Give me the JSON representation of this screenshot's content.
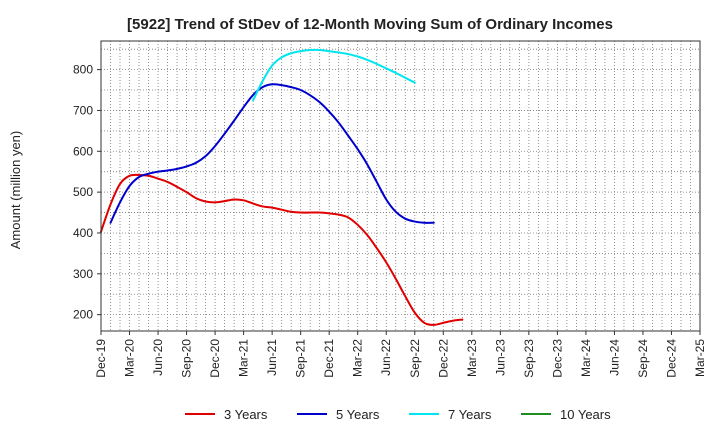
{
  "chart_data": {
    "type": "line",
    "title": "[5922]  Trend of StDev of 12-Month Moving Sum of Ordinary Incomes",
    "xlabel": "",
    "ylabel": "Amount (million yen)",
    "ylim": [
      160,
      870
    ],
    "yticks": [
      200,
      300,
      400,
      500,
      600,
      700,
      800
    ],
    "xticks": [
      "Dec-19",
      "Mar-20",
      "Jun-20",
      "Sep-20",
      "Dec-20",
      "Mar-21",
      "Jun-21",
      "Sep-21",
      "Dec-21",
      "Mar-22",
      "Jun-22",
      "Sep-22",
      "Dec-22",
      "Mar-23",
      "Jun-23",
      "Sep-23",
      "Dec-23",
      "Mar-24",
      "Jun-24",
      "Sep-24",
      "Dec-24",
      "Mar-25"
    ],
    "grid": true,
    "legend_position": "bottom",
    "series": [
      {
        "name": "3 Years",
        "color": "#e00000",
        "points": [
          [
            0,
            403
          ],
          [
            1,
            470
          ],
          [
            2,
            520
          ],
          [
            3,
            540
          ],
          [
            4,
            542
          ],
          [
            5,
            540
          ],
          [
            6,
            533
          ],
          [
            7,
            525
          ],
          [
            8,
            513
          ],
          [
            9,
            500
          ],
          [
            10,
            485
          ],
          [
            11,
            477
          ],
          [
            12,
            475
          ],
          [
            13,
            478
          ],
          [
            14,
            482
          ],
          [
            15,
            480
          ],
          [
            16,
            472
          ],
          [
            17,
            465
          ],
          [
            18,
            462
          ],
          [
            19,
            457
          ],
          [
            20,
            452
          ],
          [
            21,
            450
          ],
          [
            22,
            450
          ],
          [
            23,
            450
          ],
          [
            24,
            448
          ],
          [
            25,
            445
          ],
          [
            26,
            438
          ],
          [
            27,
            420
          ],
          [
            28,
            395
          ],
          [
            29,
            363
          ],
          [
            30,
            328
          ],
          [
            31,
            288
          ],
          [
            32,
            245
          ],
          [
            33,
            205
          ],
          [
            34,
            180
          ],
          [
            35,
            175
          ],
          [
            36,
            180
          ],
          [
            37,
            185
          ],
          [
            38,
            188
          ]
        ]
      },
      {
        "name": "5 Years",
        "color": "#0000cc",
        "points": [
          [
            1,
            425
          ],
          [
            2,
            475
          ],
          [
            3,
            515
          ],
          [
            4,
            537
          ],
          [
            5,
            545
          ],
          [
            6,
            550
          ],
          [
            7,
            553
          ],
          [
            8,
            557
          ],
          [
            9,
            563
          ],
          [
            10,
            572
          ],
          [
            11,
            588
          ],
          [
            12,
            613
          ],
          [
            13,
            643
          ],
          [
            14,
            675
          ],
          [
            15,
            708
          ],
          [
            16,
            738
          ],
          [
            17,
            757
          ],
          [
            18,
            764
          ],
          [
            19,
            762
          ],
          [
            20,
            757
          ],
          [
            21,
            750
          ],
          [
            22,
            737
          ],
          [
            23,
            720
          ],
          [
            24,
            697
          ],
          [
            25,
            670
          ],
          [
            26,
            638
          ],
          [
            27,
            605
          ],
          [
            28,
            568
          ],
          [
            29,
            525
          ],
          [
            30,
            482
          ],
          [
            31,
            452
          ],
          [
            32,
            435
          ],
          [
            33,
            428
          ],
          [
            34,
            425
          ],
          [
            35,
            425
          ]
        ]
      },
      {
        "name": "7 Years",
        "color": "#00e5ee",
        "points": [
          [
            16,
            725
          ],
          [
            17,
            772
          ],
          [
            18,
            810
          ],
          [
            19,
            830
          ],
          [
            20,
            840
          ],
          [
            21,
            845
          ],
          [
            22,
            848
          ],
          [
            23,
            848
          ],
          [
            24,
            845
          ],
          [
            25,
            842
          ],
          [
            26,
            838
          ],
          [
            27,
            832
          ],
          [
            28,
            824
          ],
          [
            29,
            814
          ],
          [
            30,
            803
          ],
          [
            31,
            792
          ],
          [
            32,
            780
          ],
          [
            33,
            768
          ]
        ]
      },
      {
        "name": "10 Years",
        "color": "#228b22",
        "points": []
      }
    ]
  }
}
